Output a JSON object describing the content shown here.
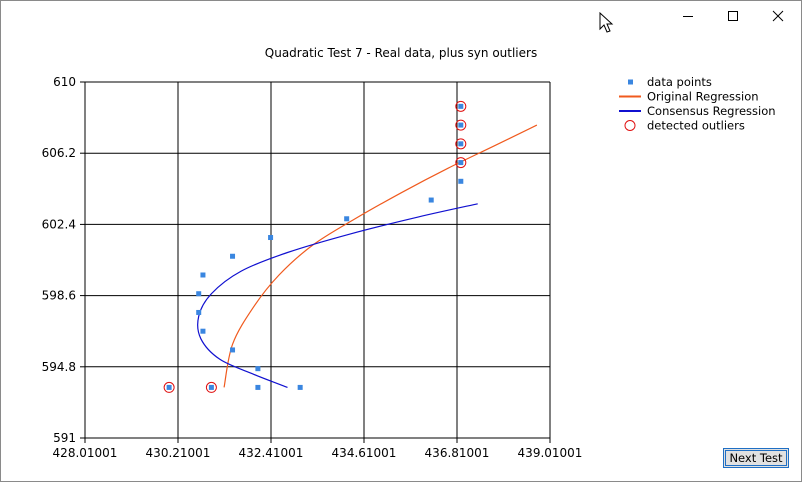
{
  "window": {
    "minimize_icon": "minimize-icon",
    "maximize_icon": "maximize-icon",
    "close_icon": "close-icon"
  },
  "buttons": {
    "next_test": "Next Test"
  },
  "colors": {
    "data_points": "#3a86e0",
    "original_regression": "#f05a1e",
    "consensus_regression": "#1010d0",
    "outliers": "#e01010"
  },
  "chart_data": {
    "type": "scatter",
    "title": "Quadratic Test 7 - Real data, plus syn outliers",
    "xlim": [
      428.01001,
      439.01001
    ],
    "ylim": [
      591,
      610
    ],
    "x_ticks": [
      "428.01001",
      "430.21001",
      "432.41001",
      "434.61001",
      "436.81001",
      "439.01001"
    ],
    "y_ticks": [
      "591",
      "594.8",
      "598.6",
      "602.4",
      "606.2",
      "610"
    ],
    "grid": true,
    "legend": {
      "position": "top-right",
      "entries": [
        {
          "label": "data points",
          "marker": "square"
        },
        {
          "label": "Original Regression",
          "marker": "line"
        },
        {
          "label": "Consensus Regression",
          "marker": "line"
        },
        {
          "label": "detected outliers",
          "marker": "circle"
        }
      ]
    },
    "series": [
      {
        "name": "data points",
        "points": [
          [
            430.0,
            593.7
          ],
          [
            431.0,
            593.7
          ],
          [
            432.1,
            593.7
          ],
          [
            432.1,
            594.7
          ],
          [
            433.1,
            593.7
          ],
          [
            431.5,
            595.7
          ],
          [
            430.8,
            596.7
          ],
          [
            430.7,
            597.7
          ],
          [
            430.7,
            598.7
          ],
          [
            430.8,
            599.7
          ],
          [
            431.5,
            600.7
          ],
          [
            432.4,
            601.7
          ],
          [
            434.2,
            602.7
          ],
          [
            436.2,
            603.7
          ],
          [
            436.9,
            604.7
          ],
          [
            436.9,
            605.7
          ],
          [
            436.9,
            606.7
          ],
          [
            436.9,
            607.7
          ],
          [
            436.9,
            608.7
          ]
        ]
      },
      {
        "name": "Original Regression",
        "points": [
          [
            431.3,
            593.7
          ],
          [
            431.5,
            596.0
          ],
          [
            432.0,
            598.0
          ],
          [
            432.6,
            599.7
          ],
          [
            433.4,
            601.3
          ],
          [
            434.4,
            602.7
          ],
          [
            435.5,
            604.1
          ],
          [
            436.6,
            605.4
          ],
          [
            437.7,
            606.6
          ],
          [
            438.7,
            607.7
          ]
        ]
      },
      {
        "name": "Consensus Regression",
        "points": [
          [
            432.8,
            593.7
          ],
          [
            432.0,
            594.4
          ],
          [
            431.2,
            595.2
          ],
          [
            430.75,
            596.3
          ],
          [
            430.7,
            597.5
          ],
          [
            431.0,
            598.7
          ],
          [
            431.7,
            599.9
          ],
          [
            432.8,
            600.9
          ],
          [
            434.3,
            601.9
          ],
          [
            435.9,
            602.8
          ],
          [
            437.3,
            603.5
          ]
        ]
      },
      {
        "name": "detected outliers",
        "points": [
          [
            430.0,
            593.7
          ],
          [
            431.0,
            593.7
          ],
          [
            436.9,
            605.7
          ],
          [
            436.9,
            606.7
          ],
          [
            436.9,
            607.7
          ],
          [
            436.9,
            608.7
          ]
        ]
      }
    ]
  }
}
